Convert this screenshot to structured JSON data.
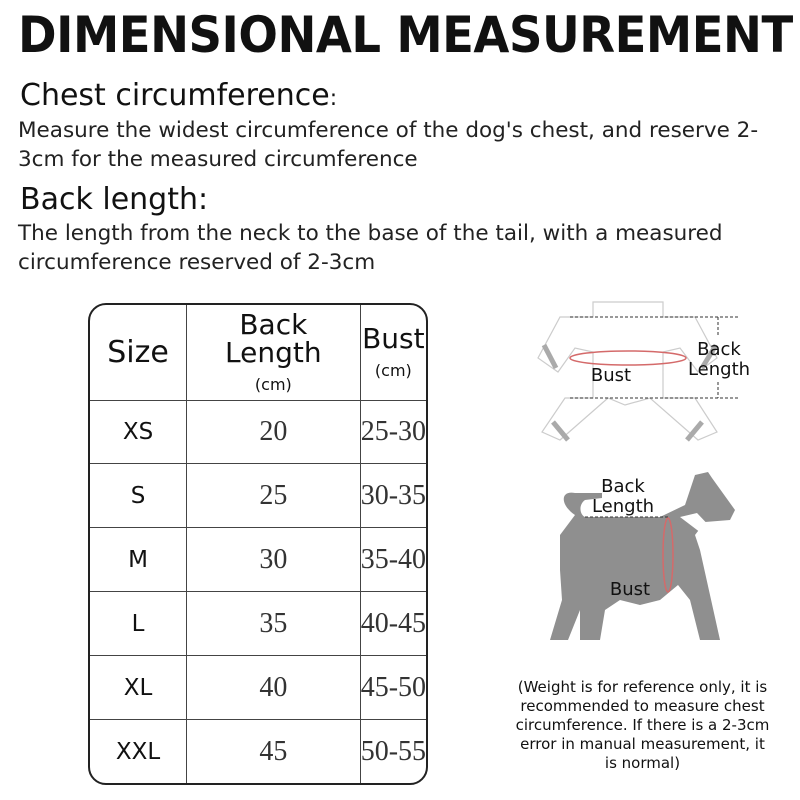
{
  "title": "DIMENSIONAL MEASUREMENT",
  "chest": {
    "heading": "Chest circumference",
    "colon": ":",
    "text": "Measure the widest circumference of the dog's chest, and reserve 2-3cm for the measured circumference"
  },
  "back": {
    "heading": "Back length:",
    "text": "The length from the neck to the base of the tail, with a measured circumference reserved of 2-3cm"
  },
  "size_table": {
    "headers": {
      "size": "Size",
      "back_length": "Back Length",
      "back_unit": "(cm)",
      "bust": "Bust",
      "bust_unit": "(cm)"
    },
    "rows": [
      {
        "size": "XS",
        "back": "20",
        "bust": "25-30"
      },
      {
        "size": "S",
        "back": "25",
        "bust": "30-35"
      },
      {
        "size": "M",
        "back": "30",
        "bust": "35-40"
      },
      {
        "size": "L",
        "back": "35",
        "bust": "40-45"
      },
      {
        "size": "XL",
        "back": "40",
        "bust": "45-50"
      },
      {
        "size": "XXL",
        "back": "45",
        "bust": "50-55"
      }
    ]
  },
  "garment_diagram": {
    "bust_label": "Bust",
    "back_label_1": "Back",
    "back_label_2": "Length"
  },
  "dog_diagram": {
    "back_label_1": "Back",
    "back_label_2": "Length",
    "bust_label": "Bust"
  },
  "note": "(Weight is for reference only, it is recommended to measure chest circumference. If there is a 2-3cm error in manual measurement, it is normal)",
  "colors": {
    "dog": "#8f8f8f",
    "bust_line": "#d46a6a",
    "border": "#222222"
  }
}
